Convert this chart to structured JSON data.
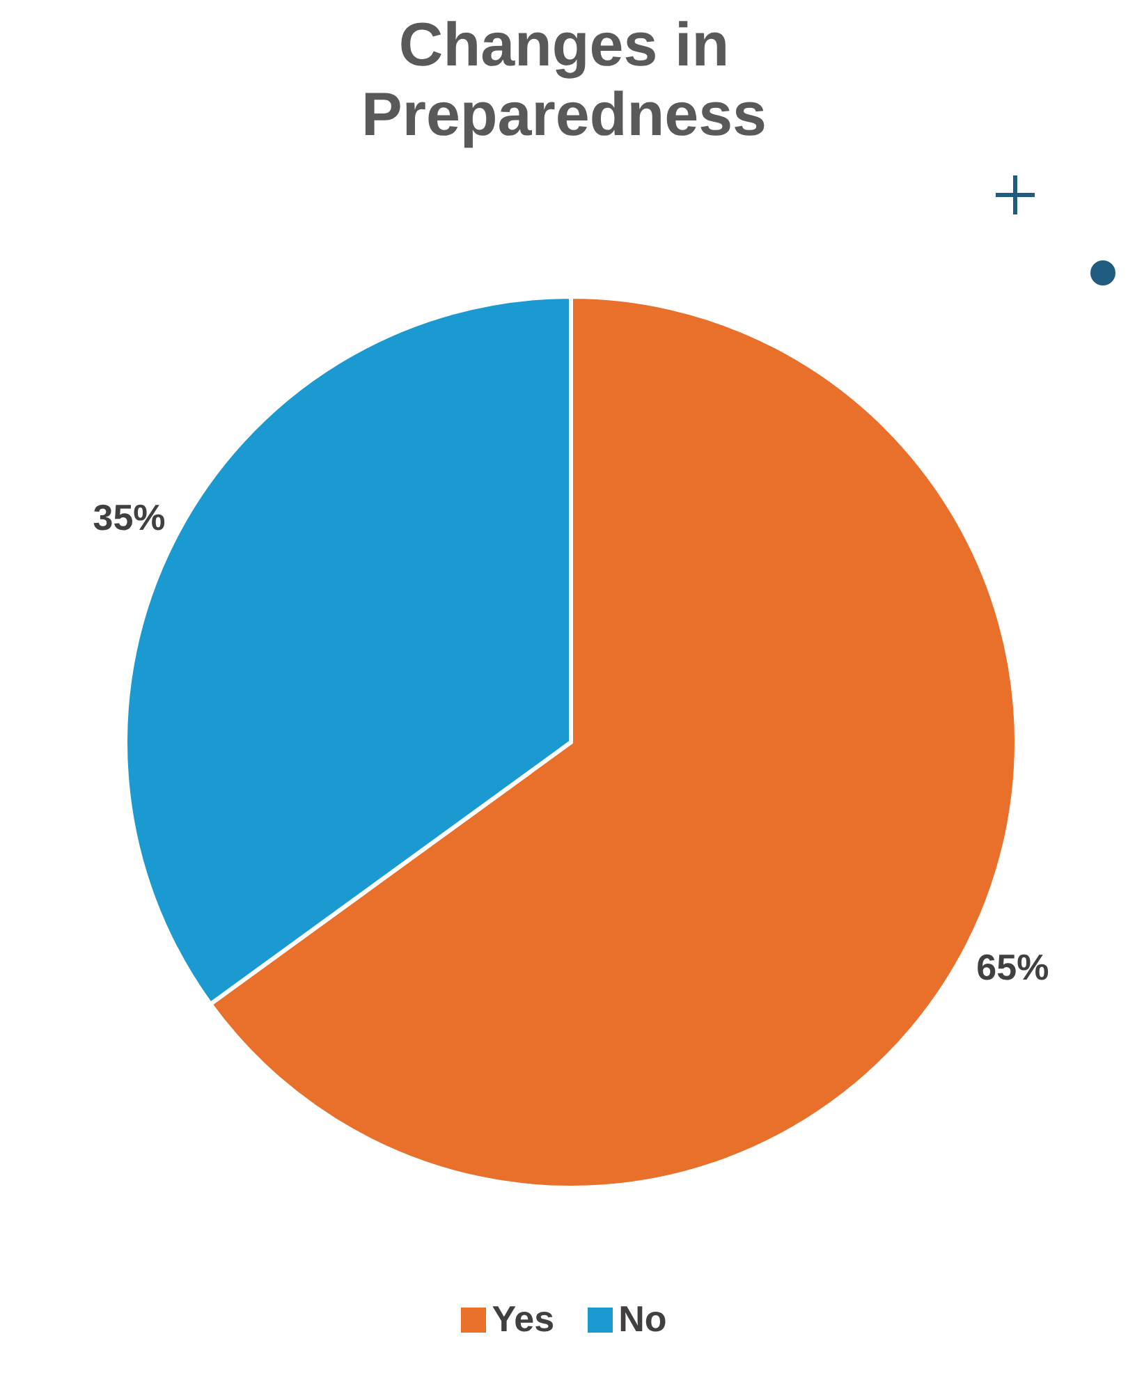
{
  "chart_data": {
    "type": "pie",
    "title": "Changes in Preparedness",
    "categories": [
      "Yes",
      "No"
    ],
    "values": [
      65,
      35
    ],
    "colors": [
      "#e8702a",
      "#1b9ad2"
    ],
    "value_labels": [
      "65%",
      "35%"
    ],
    "legend": "bottom"
  }
}
